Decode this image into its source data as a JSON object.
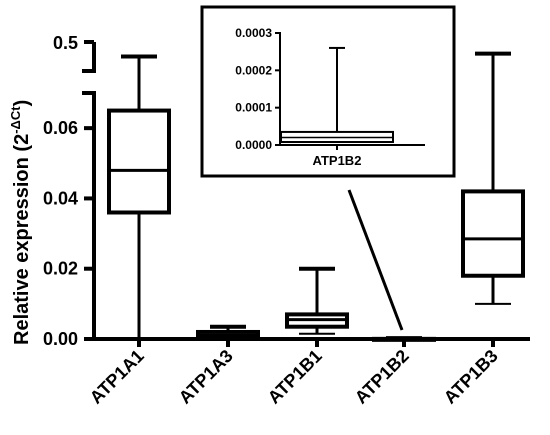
{
  "chart_data": [
    {
      "type": "box",
      "ylabel": "Relative expression (2",
      "ylabel_superscript": "-ΔCt",
      "ylabel_close": ")",
      "y_axis": "broken",
      "y_lower_range": [
        0,
        0.07
      ],
      "y_upper_range": [
        0.4,
        0.5
      ],
      "y_ticks_lower": [
        "0.00",
        "0.02",
        "0.04",
        "0.06"
      ],
      "y_ticks_upper": [
        "0.5"
      ],
      "categories": [
        "ATP1A1",
        "ATP1A3",
        "ATP1B1",
        "ATP1B2",
        "ATP1B3"
      ],
      "boxes": [
        {
          "min": 0.0,
          "q1": 0.036,
          "median": 0.048,
          "q3": 0.065,
          "max": 0.45
        },
        {
          "min": 0.0,
          "q1": 0.0005,
          "median": 0.001,
          "q3": 0.002,
          "max": 0.0035
        },
        {
          "min": 0.0015,
          "q1": 0.0035,
          "median": 0.0055,
          "q3": 0.007,
          "max": 0.02
        },
        {
          "min": 0.0,
          "q1": 1e-05,
          "median": 2e-05,
          "q3": 4e-05,
          "max": 0.00026
        },
        {
          "min": 0.01,
          "q1": 0.018,
          "median": 0.0285,
          "q3": 0.042,
          "max": 0.46
        }
      ],
      "grid": false
    },
    {
      "type": "box",
      "role": "inset",
      "categories": [
        "ATP1B2"
      ],
      "y_ticks": [
        "0.0000",
        "0.0001",
        "0.0002",
        "0.0003"
      ],
      "ylim": [
        0,
        0.0003
      ],
      "boxes": [
        {
          "min": 0.0,
          "q1": 8e-06,
          "median": 2e-05,
          "q3": 3.5e-05,
          "max": 0.00026
        }
      ]
    }
  ]
}
